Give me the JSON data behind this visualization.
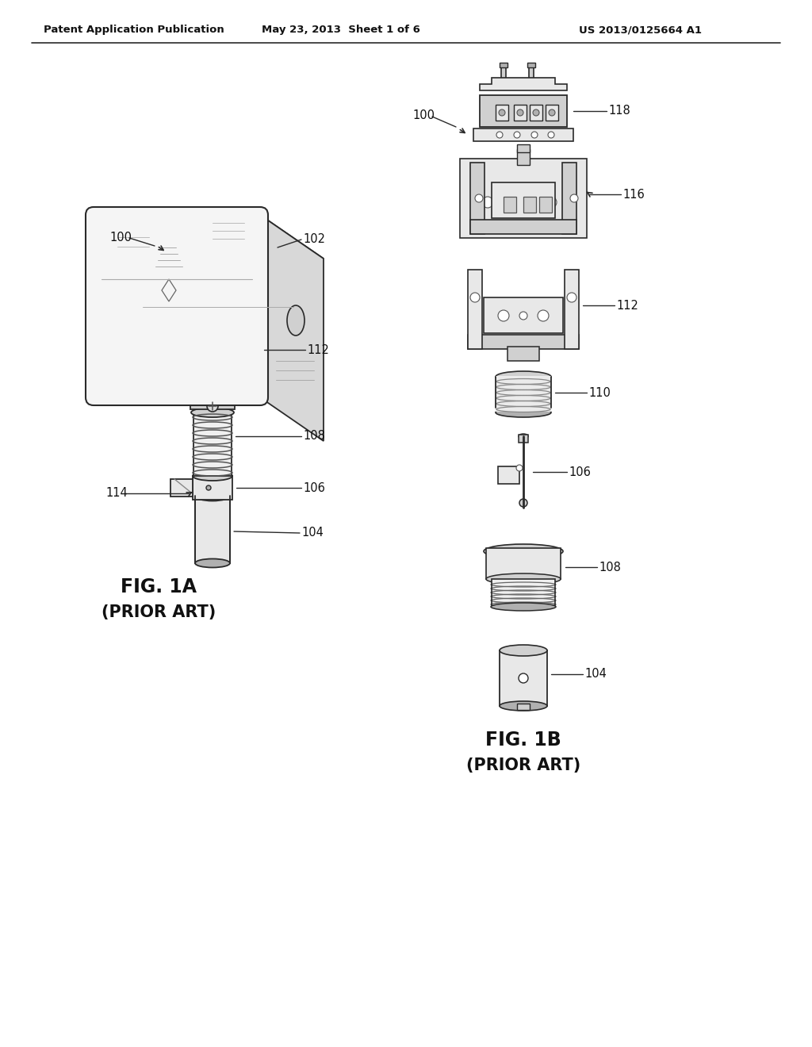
{
  "bg_color": "#ffffff",
  "line_color": "#2a2a2a",
  "gray_light": "#e8e8e8",
  "gray_mid": "#d0d0d0",
  "gray_dark": "#b0b0b0",
  "header_left": "Patent Application Publication",
  "header_center": "May 23, 2013  Sheet 1 of 6",
  "header_right": "US 2013/0125664 A1",
  "fig1a_label": "FIG. 1A",
  "fig1a_sub": "(PRIOR ART)",
  "fig1b_label": "FIG. 1B",
  "fig1b_sub": "(PRIOR ART)"
}
